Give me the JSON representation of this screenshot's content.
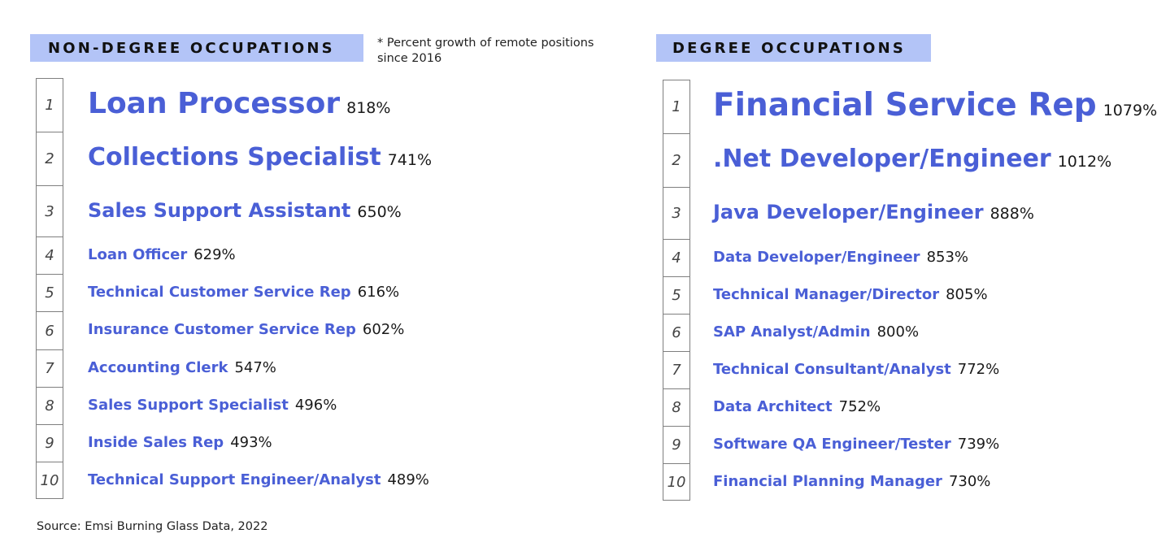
{
  "left_header": "NON-DEGREE OCCUPATIONS",
  "right_header": "DEGREE OCCUPATIONS",
  "note_line1": "* Percent growth of remote positions",
  "note_line2": "since 2016",
  "source": "Source: Emsi Burning Glass Data, 2022",
  "chart_data": [
    {
      "type": "table",
      "title": "NON-DEGREE OCCUPATIONS",
      "unit": "Percent growth of remote positions since 2016",
      "rows": [
        {
          "rank": "1",
          "occupation": "Loan Processor",
          "growth": "818%",
          "value": 818
        },
        {
          "rank": "2",
          "occupation": "Collections Specialist",
          "growth": "741%",
          "value": 741
        },
        {
          "rank": "3",
          "occupation": "Sales Support Assistant",
          "growth": "650%",
          "value": 650
        },
        {
          "rank": "4",
          "occupation": "Loan Officer",
          "growth": "629%",
          "value": 629
        },
        {
          "rank": "5",
          "occupation": "Technical Customer Service Rep",
          "growth": "616%",
          "value": 616
        },
        {
          "rank": "6",
          "occupation": "Insurance Customer Service Rep",
          "growth": "602%",
          "value": 602
        },
        {
          "rank": "7",
          "occupation": "Accounting Clerk",
          "growth": "547%",
          "value": 547
        },
        {
          "rank": "8",
          "occupation": "Sales Support Specialist",
          "growth": "496%",
          "value": 496
        },
        {
          "rank": "9",
          "occupation": "Inside Sales Rep",
          "growth": "493%",
          "value": 493
        },
        {
          "rank": "10",
          "occupation": "Technical Support Engineer/Analyst",
          "growth": "489%",
          "value": 489
        }
      ]
    },
    {
      "type": "table",
      "title": "DEGREE OCCUPATIONS",
      "unit": "Percent growth of remote positions since 2016",
      "rows": [
        {
          "rank": "1",
          "occupation": "Financial Service Rep",
          "growth": "1079%",
          "value": 1079
        },
        {
          "rank": "2",
          "occupation": ".Net Developer/Engineer",
          "growth": "1012%",
          "value": 1012
        },
        {
          "rank": "3",
          "occupation": "Java Developer/Engineer",
          "growth": "888%",
          "value": 888
        },
        {
          "rank": "4",
          "occupation": "Data Developer/Engineer",
          "growth": "853%",
          "value": 853
        },
        {
          "rank": "5",
          "occupation": "Technical Manager/Director",
          "growth": "805%",
          "value": 805
        },
        {
          "rank": "6",
          "occupation": "SAP Analyst/Admin",
          "growth": "800%",
          "value": 800
        },
        {
          "rank": "7",
          "occupation": "Technical Consultant/Analyst",
          "growth": "772%",
          "value": 772
        },
        {
          "rank": "8",
          "occupation": "Data Architect",
          "growth": "752%",
          "value": 752
        },
        {
          "rank": "9",
          "occupation": "Software QA Engineer/Tester",
          "growth": "739%",
          "value": 739
        },
        {
          "rank": "10",
          "occupation": "Financial Planning Manager",
          "growth": "730%",
          "value": 730
        }
      ]
    }
  ]
}
